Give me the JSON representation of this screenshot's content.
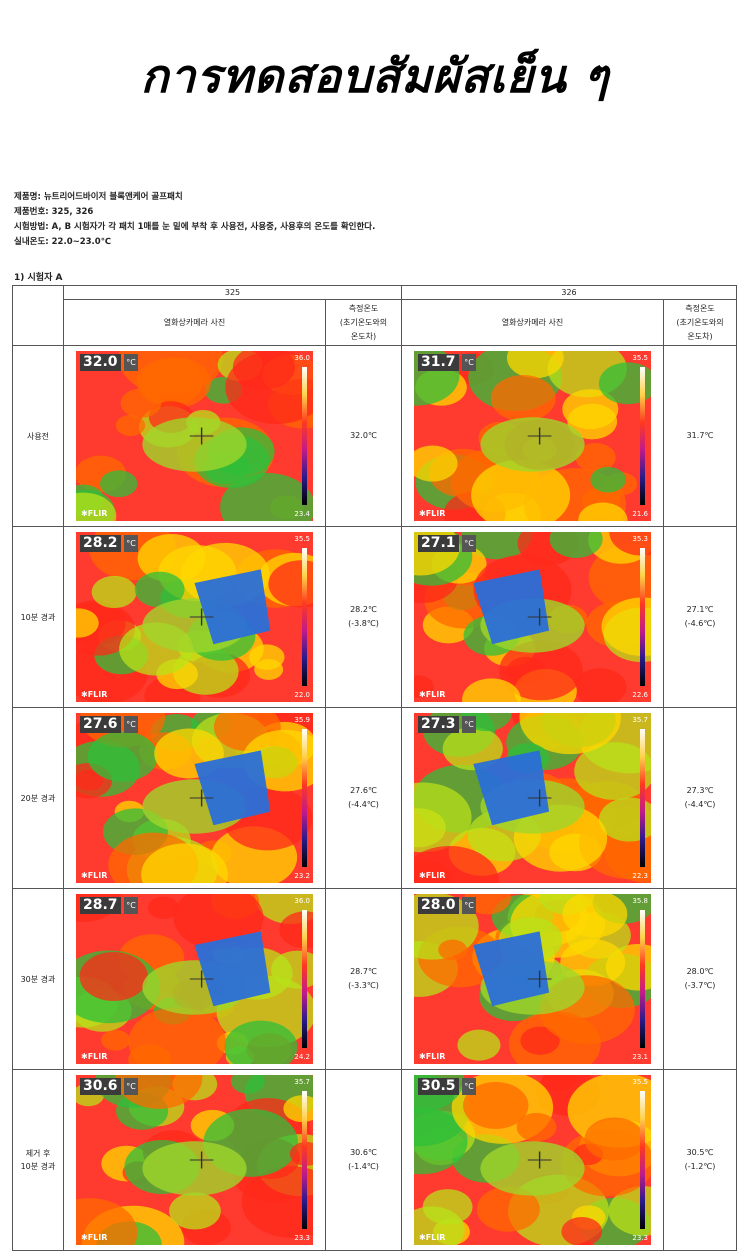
{
  "title": "การทดสอบสัมผัสเย็น ๆ",
  "meta": {
    "product_name": "제품명: 뉴트리어드바이저 블록앤케어 골프패치",
    "product_no": "제품번호: 325, 326",
    "method": "시험방법: A, B 시험자가 각 패치 1매를 눈 밑에 부착 후 사용전, 사용중, 사용후의 온도를 확인한다.",
    "room_temp": "실내온도: 22.0~23.0℃"
  },
  "subject": "1) 시험자 A",
  "columns": {
    "product_a": "325",
    "product_b": "326",
    "photo_header": "열화상카메라 사진",
    "measure_line1": "측정온도",
    "measure_line2": "(초기온도와의",
    "measure_line3": "온도차)"
  },
  "flir_label": "FLIR",
  "unit_label": "°C",
  "rows": [
    {
      "label_line1": "사용전",
      "label_line2": "",
      "a_temp": "32.0",
      "a_max": "36.0",
      "a_min": "23.4",
      "a_value": "32.0℃",
      "a_diff": "",
      "b_temp": "31.7",
      "b_max": "35.5",
      "b_min": "21.6",
      "b_value": "31.7℃",
      "b_diff": ""
    },
    {
      "label_line1": "10분 경과",
      "label_line2": "",
      "a_temp": "28.2",
      "a_max": "35.5",
      "a_min": "22.0",
      "a_value": "28.2℃",
      "a_diff": "(-3.8℃)",
      "b_temp": "27.1",
      "b_max": "35.3",
      "b_min": "22.6",
      "b_value": "27.1℃",
      "b_diff": "(-4.6℃)"
    },
    {
      "label_line1": "20분 경과",
      "label_line2": "",
      "a_temp": "27.6",
      "a_max": "35.9",
      "a_min": "23.2",
      "a_value": "27.6℃",
      "a_diff": "(-4.4℃)",
      "b_temp": "27.3",
      "b_max": "35.7",
      "b_min": "22.3",
      "b_value": "27.3℃",
      "b_diff": "(-4.4℃)"
    },
    {
      "label_line1": "30분 경과",
      "label_line2": "",
      "a_temp": "28.7",
      "a_max": "36.0",
      "a_min": "24.2",
      "a_value": "28.7℃",
      "a_diff": "(-3.3℃)",
      "b_temp": "28.0",
      "b_max": "35.8",
      "b_min": "23.1",
      "b_value": "28.0℃",
      "b_diff": "(-3.7℃)"
    },
    {
      "label_line1": "제거 후",
      "label_line2": "10분 경과",
      "a_temp": "30.6",
      "a_max": "35.7",
      "a_min": "23.3",
      "a_value": "30.6℃",
      "a_diff": "(-1.4℃)",
      "b_temp": "30.5",
      "b_max": "35.5",
      "b_min": "23.3",
      "b_value": "30.5℃",
      "b_diff": "(-1.2℃)"
    }
  ]
}
